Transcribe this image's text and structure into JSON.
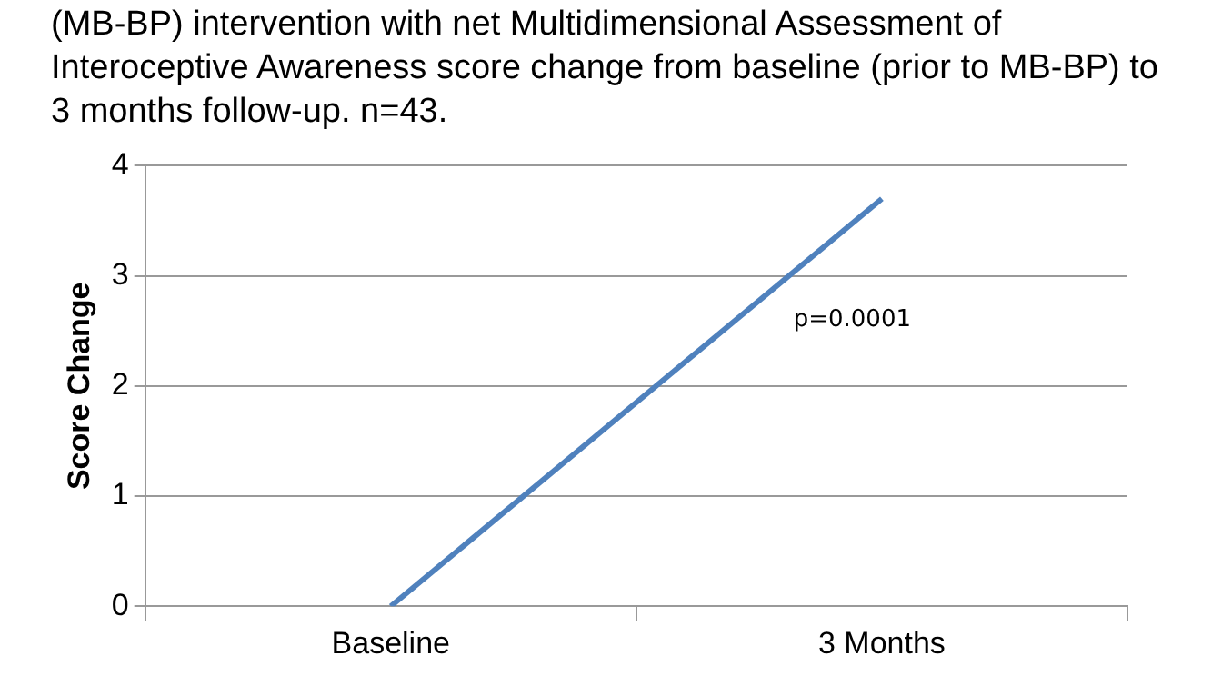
{
  "chart_data": {
    "type": "line",
    "title": "(MB-BP) intervention with net Multidimensional Assessment of Interoceptive Awareness score change from baseline (prior to MB-BP) to 3 months follow-up. n=43.",
    "ylabel": "Score Change",
    "categories": [
      "Baseline",
      "3 Months"
    ],
    "series": [
      {
        "color": "#4f81bd",
        "values": [
          0,
          3.7
        ]
      }
    ],
    "ylim": [
      0,
      4
    ],
    "yticks": [
      0,
      1,
      2,
      3,
      4
    ],
    "grid": "y",
    "legend": false,
    "marker": "none",
    "line_style": "solid",
    "annotations": [
      "p=0.0001"
    ]
  }
}
